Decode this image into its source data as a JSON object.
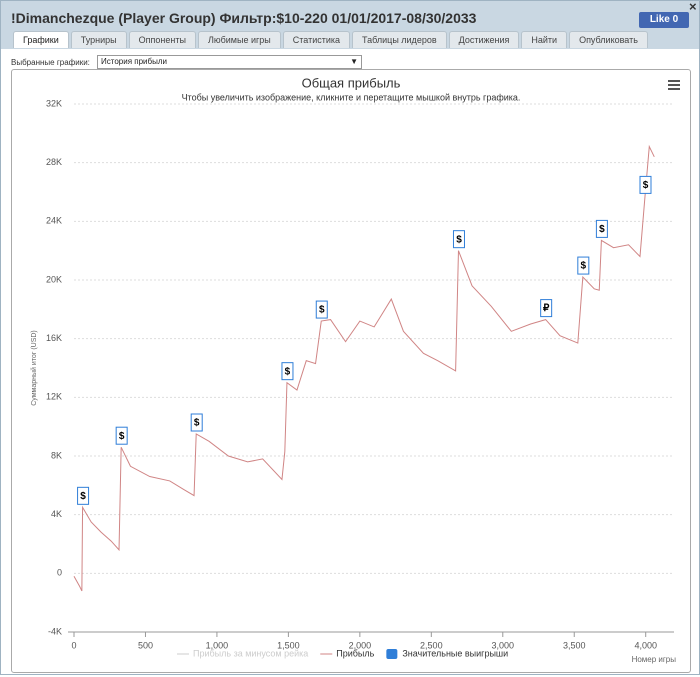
{
  "header": {
    "title": "!Dimanchezque (Player Group) Фильтр:$10-220 01/01/2017-08/30/2033",
    "like_button": "Like 0",
    "close": "×"
  },
  "tabs": [
    "Графики",
    "Турниры",
    "Оппоненты",
    "Любимые игры",
    "Статистика",
    "Таблицы лидеров",
    "Достижения",
    "Найти",
    "Опубликовать"
  ],
  "selector": {
    "label": "Выбранные графики:",
    "value": "История прибыли"
  },
  "chart_data": {
    "type": "line",
    "title": "Общая прибыль",
    "subtitle": "Чтобы увеличить изображение, кликните и перетащите мышкой внутрь графика.",
    "y_label": "Суммарный итог (USD)",
    "x_label": "Номер игры",
    "xlim": [
      0,
      4100
    ],
    "ylim": [
      -4000,
      32000
    ],
    "xticks": [
      0,
      500,
      {
        "value": 1000,
        "label": "1,000"
      },
      {
        "value": 1500,
        "label": "1,500"
      },
      {
        "value": 2000,
        "label": "2,000"
      },
      {
        "value": 2500,
        "label": "2,500"
      },
      {
        "value": 3000,
        "label": "3,000"
      },
      {
        "value": 3500,
        "label": "3,500"
      },
      {
        "value": 4000,
        "label": "4,000"
      }
    ],
    "yticks": [
      {
        "value": -4000,
        "label": "-4K"
      },
      0,
      {
        "value": 4000,
        "label": "4K"
      },
      {
        "value": 8000,
        "label": "8K"
      },
      {
        "value": 12000,
        "label": "12K"
      },
      {
        "value": 16000,
        "label": "16K"
      },
      {
        "value": 20000,
        "label": "20K"
      },
      {
        "value": 24000,
        "label": "24K"
      },
      {
        "value": 28000,
        "label": "28K"
      },
      {
        "value": 32000,
        "label": "32K"
      }
    ],
    "grid": true,
    "series": [
      {
        "name": "Прибыль за минусом рейка",
        "color": "#cccccc",
        "visible": false
      },
      {
        "name": "Прибыль",
        "color": "#d08585",
        "visible": true,
        "x": [
          0,
          40,
          55,
          60,
          120,
          190,
          260,
          315,
          330,
          395,
          530,
          670,
          770,
          840,
          855,
          945,
          1080,
          1215,
          1320,
          1455,
          1475,
          1490,
          1560,
          1625,
          1690,
          1730,
          1795,
          1900,
          2000,
          2100,
          2220,
          2305,
          2445,
          2545,
          2670,
          2690,
          2785,
          2920,
          3060,
          3195,
          3300,
          3400,
          3525,
          3560,
          3640,
          3675,
          3690,
          3775,
          3880,
          3960,
          3995,
          4025,
          4060
        ],
        "values": [
          -200,
          -900,
          -1200,
          4500,
          3500,
          2800,
          2200,
          1600,
          8600,
          7300,
          6600,
          6300,
          5700,
          5300,
          9500,
          9000,
          8000,
          7600,
          7800,
          6400,
          8300,
          13000,
          12500,
          14500,
          14300,
          17200,
          17300,
          15800,
          17200,
          16800,
          18700,
          16500,
          15000,
          14500,
          13800,
          22000,
          19600,
          18200,
          16500,
          17000,
          17300,
          16200,
          15700,
          20200,
          19400,
          19300,
          22700,
          22200,
          22400,
          21600,
          25700,
          29100,
          28400
        ]
      }
    ],
    "markers": {
      "name": "Значительные выигрыши",
      "color": "#2f7ed8",
      "points": [
        {
          "x": 60,
          "y": 4500,
          "label": "$"
        },
        {
          "x": 330,
          "y": 8600,
          "label": "$"
        },
        {
          "x": 855,
          "y": 9500,
          "label": "$"
        },
        {
          "x": 1490,
          "y": 13000,
          "label": "$"
        },
        {
          "x": 1730,
          "y": 17200,
          "label": "$"
        },
        {
          "x": 2690,
          "y": 22000,
          "label": "$"
        },
        {
          "x": 3300,
          "y": 17300,
          "label": "₽"
        },
        {
          "x": 3560,
          "y": 20200,
          "label": "$"
        },
        {
          "x": 3690,
          "y": 22700,
          "label": "$"
        },
        {
          "x": 3995,
          "y": 25700,
          "label": "$"
        }
      ]
    }
  }
}
